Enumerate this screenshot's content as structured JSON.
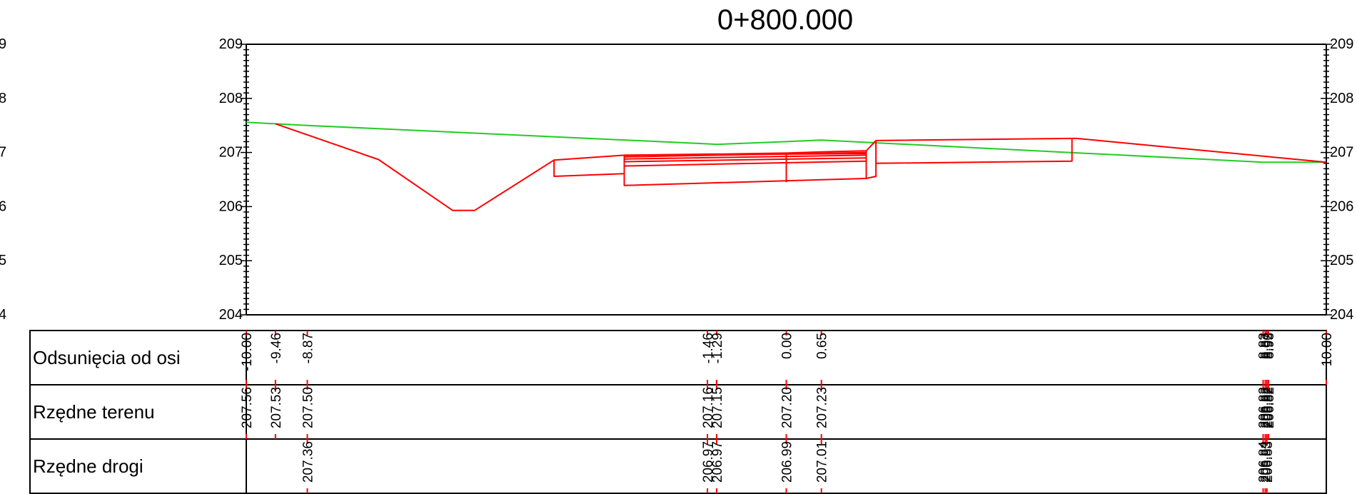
{
  "title": "0+800.000",
  "axis": {
    "elevation_min": 204,
    "elevation_max": 209,
    "offset_min": -10.0,
    "offset_max": 10.0,
    "tick_labels": [
      "204",
      "205",
      "206",
      "207",
      "208",
      "209"
    ],
    "edge_tick_labels": [
      "4",
      "5",
      "6",
      "7",
      "8",
      "9"
    ]
  },
  "colors": {
    "terrain": "#22cc22",
    "road": "#ff0000",
    "frame": "#000000",
    "table_marks": "#ff0000"
  },
  "chart_data": {
    "type": "line",
    "title": "0+800.000",
    "xlabel": "",
    "ylabel": "",
    "xlim": [
      -10.0,
      10.0
    ],
    "ylim": [
      204,
      209
    ],
    "series": [
      {
        "kind": "terrain",
        "points": [
          [
            -10.0,
            207.56
          ],
          [
            -9.46,
            207.53
          ],
          [
            -8.87,
            207.5
          ],
          [
            -1.46,
            207.16
          ],
          [
            -1.29,
            207.15
          ],
          [
            0.0,
            207.2
          ],
          [
            0.65,
            207.23
          ],
          [
            8.83,
            206.82
          ],
          [
            8.87,
            206.82
          ],
          [
            8.9,
            206.82
          ],
          [
            8.93,
            206.82
          ],
          [
            10.0,
            206.82
          ]
        ]
      },
      {
        "kind": "road-outline",
        "points": [
          [
            -9.46,
            207.53
          ],
          [
            -7.55,
            206.87
          ],
          [
            -6.18,
            205.93
          ],
          [
            -5.77,
            205.93
          ],
          [
            -4.3,
            206.86
          ],
          [
            -4.3,
            206.56
          ],
          [
            -3.0,
            206.61
          ],
          [
            -3.0,
            206.95
          ],
          [
            1.48,
            206.98
          ],
          [
            1.48,
            206.52
          ],
          [
            -3.0,
            206.39
          ],
          [
            -3.0,
            206.95
          ]
        ]
      },
      {
        "kind": "road-pavement",
        "points": [
          [
            -4.3,
            206.86
          ],
          [
            -3.0,
            206.95
          ],
          [
            -1.46,
            206.97
          ],
          [
            -1.29,
            206.97
          ],
          [
            0.0,
            206.99
          ],
          [
            0.65,
            207.01
          ],
          [
            1.48,
            207.03
          ],
          [
            1.66,
            207.22
          ],
          [
            5.29,
            207.26
          ],
          [
            5.38,
            207.26
          ],
          [
            10.0,
            206.82
          ]
        ]
      },
      {
        "kind": "road-layer",
        "points": [
          [
            -3.0,
            206.92
          ],
          [
            1.48,
            207.0
          ]
        ]
      },
      {
        "kind": "road-layer",
        "points": [
          [
            -3.0,
            206.88
          ],
          [
            1.48,
            206.95
          ]
        ]
      },
      {
        "kind": "road-layer",
        "points": [
          [
            -3.0,
            206.83
          ],
          [
            1.48,
            206.9
          ]
        ]
      },
      {
        "kind": "road-layer",
        "points": [
          [
            -3.0,
            206.75
          ],
          [
            1.48,
            206.84
          ]
        ]
      },
      {
        "kind": "road-center-line",
        "points": [
          [
            0.0,
            206.99
          ],
          [
            0.0,
            206.45
          ]
        ]
      },
      {
        "kind": "road-shoulder",
        "points": [
          [
            1.48,
            207.03
          ],
          [
            1.48,
            206.52
          ],
          [
            1.66,
            206.56
          ],
          [
            1.66,
            207.22
          ]
        ]
      },
      {
        "kind": "road-shoulder",
        "points": [
          [
            1.66,
            206.8
          ],
          [
            5.29,
            206.84
          ],
          [
            5.29,
            207.26
          ]
        ]
      }
    ]
  },
  "table": {
    "rows": [
      {
        "label": "Odsunięcia od osi",
        "values": [
          {
            "x": -10.0,
            "text": "-10.00"
          },
          {
            "x": -9.46,
            "text": "-9.46"
          },
          {
            "x": -8.87,
            "text": "-8.87"
          },
          {
            "x": -1.46,
            "text": "-1.46"
          },
          {
            "x": -1.29,
            "text": "-1.29"
          },
          {
            "x": 0.0,
            "text": "0.00"
          },
          {
            "x": 0.65,
            "text": "0.65"
          },
          {
            "x": 8.83,
            "text": "8.83"
          },
          {
            "x": 8.87,
            "text": "8.87"
          },
          {
            "x": 8.9,
            "text": "8.90"
          },
          {
            "x": 8.93,
            "text": "8.93"
          },
          {
            "x": 10.0,
            "text": "10.00"
          }
        ]
      },
      {
        "label": "Rzędne terenu",
        "values": [
          {
            "x": -10.0,
            "text": "207.56"
          },
          {
            "x": -9.46,
            "text": "207.53"
          },
          {
            "x": -8.87,
            "text": "207.50"
          },
          {
            "x": -1.46,
            "text": "207.16"
          },
          {
            "x": -1.29,
            "text": "207.15"
          },
          {
            "x": 0.0,
            "text": "207.20"
          },
          {
            "x": 0.65,
            "text": "207.23"
          },
          {
            "x": 8.83,
            "text": "206.82"
          },
          {
            "x": 8.87,
            "text": "206.82"
          },
          {
            "x": 8.9,
            "text": "206.82"
          },
          {
            "x": 8.93,
            "text": "206.82"
          }
        ]
      },
      {
        "label": "Rzędne drogi",
        "values": [
          {
            "x": -8.87,
            "text": "207.36"
          },
          {
            "x": -1.46,
            "text": "206.97"
          },
          {
            "x": -1.29,
            "text": "206.97"
          },
          {
            "x": 0.0,
            "text": "206.99"
          },
          {
            "x": 0.65,
            "text": "207.01"
          },
          {
            "x": 8.83,
            "text": "206.84"
          },
          {
            "x": 8.87,
            "text": "206.83"
          },
          {
            "x": 8.9,
            "text": "206.83"
          }
        ]
      }
    ]
  }
}
